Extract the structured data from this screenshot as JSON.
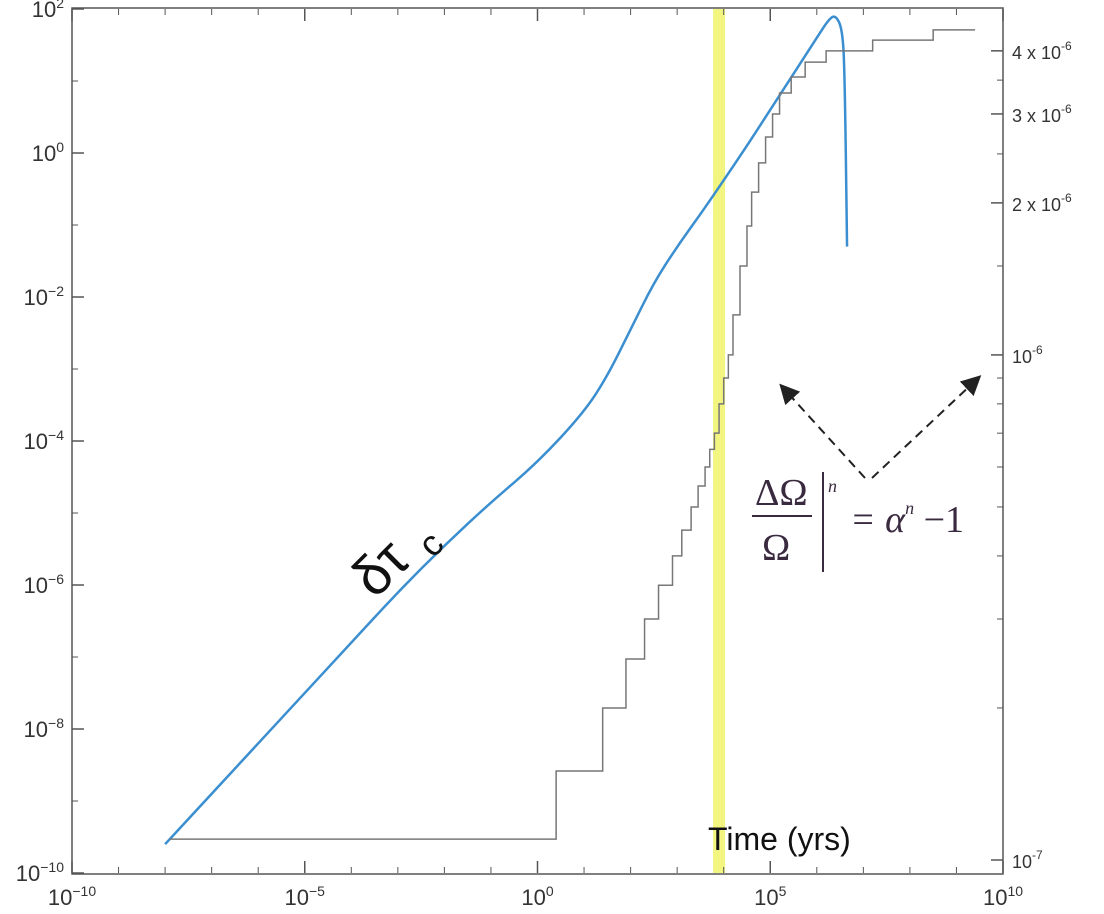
{
  "chart_data": {
    "type": "line",
    "xlabel": "Time (yrs)",
    "x_scale": "log",
    "y_scale": "log",
    "xlim": [
      1e-10,
      10000000000.0
    ],
    "ylim_left": [
      1e-10,
      100
    ],
    "ylim_right": [
      1e-07,
      4.5e-06
    ],
    "x_ticks": [
      {
        "value": -10,
        "base": "10",
        "exp": "−10"
      },
      {
        "value": -5,
        "base": "10",
        "exp": "−5"
      },
      {
        "value": 0,
        "base": "10",
        "exp": "0"
      },
      {
        "value": 5,
        "base": "10",
        "exp": "5"
      },
      {
        "value": 10,
        "base": "10",
        "exp": "10"
      }
    ],
    "y_ticks_left": [
      {
        "value": 2,
        "base": "10",
        "exp": "2"
      },
      {
        "value": 0,
        "base": "10",
        "exp": "0"
      },
      {
        "value": -2,
        "base": "10",
        "exp": "−2"
      },
      {
        "value": -4,
        "base": "10",
        "exp": "−4"
      },
      {
        "value": -6,
        "base": "10",
        "exp": "−6"
      },
      {
        "value": -8,
        "base": "10",
        "exp": "−8"
      },
      {
        "value": -10,
        "base": "10",
        "exp": "−10"
      }
    ],
    "y_ticks_right": [
      {
        "value": 4e-06,
        "base": "4 x 10",
        "exp": "-6"
      },
      {
        "value": 3e-06,
        "base": "3 x 10",
        "exp": "-6"
      },
      {
        "value": 2e-06,
        "base": "2 x 10",
        "exp": "-6"
      },
      {
        "value": 1e-06,
        "base": "10",
        "exp": "-6"
      },
      {
        "value": 1e-07,
        "base": "10",
        "exp": "-7"
      }
    ],
    "highlight": {
      "x_log": 3.9,
      "color": "#f0f56a"
    },
    "series": [
      {
        "name": "δτc",
        "color": "#3b8fd0",
        "axis": "left",
        "points": [
          [
            -8.0,
            -9.6
          ],
          [
            -7.0,
            -8.9
          ],
          [
            -6.0,
            -8.2
          ],
          [
            -5.0,
            -7.5
          ],
          [
            -4.0,
            -6.8
          ],
          [
            -3.0,
            -6.1
          ],
          [
            -2.0,
            -5.45
          ],
          [
            -1.0,
            -4.85
          ],
          [
            0.0,
            -4.3
          ],
          [
            1.0,
            -3.6
          ],
          [
            1.5,
            -3.1
          ],
          [
            2.0,
            -2.45
          ],
          [
            2.5,
            -1.8
          ],
          [
            3.0,
            -1.3
          ],
          [
            3.5,
            -0.85
          ],
          [
            4.0,
            -0.38
          ],
          [
            4.5,
            0.1
          ],
          [
            5.0,
            0.6
          ],
          [
            5.5,
            1.1
          ],
          [
            6.0,
            1.6
          ],
          [
            6.25,
            1.85
          ],
          [
            6.4,
            1.92
          ],
          [
            6.55,
            1.72
          ],
          [
            6.6,
            1.1
          ],
          [
            6.65,
            -1.3
          ]
        ]
      },
      {
        "name": "ΔΩ/Ω",
        "color": "#777777",
        "axis": "right",
        "steps": [
          [
            -7.9,
            1.1e-07
          ],
          [
            0.4,
            1.1e-07
          ],
          [
            0.4,
            1.5e-07
          ],
          [
            1.4,
            1.5e-07
          ],
          [
            1.4,
            2e-07
          ],
          [
            1.9,
            2e-07
          ],
          [
            1.9,
            2.5e-07
          ],
          [
            2.3,
            2.5e-07
          ],
          [
            2.3,
            3e-07
          ],
          [
            2.6,
            3e-07
          ],
          [
            2.6,
            3.5e-07
          ],
          [
            2.9,
            3.5e-07
          ],
          [
            2.9,
            4e-07
          ],
          [
            3.1,
            4e-07
          ],
          [
            3.1,
            4.5e-07
          ],
          [
            3.3,
            4.5e-07
          ],
          [
            3.3,
            5e-07
          ],
          [
            3.45,
            5e-07
          ],
          [
            3.45,
            5.5e-07
          ],
          [
            3.6,
            5.5e-07
          ],
          [
            3.6,
            6e-07
          ],
          [
            3.7,
            6e-07
          ],
          [
            3.7,
            6.5e-07
          ],
          [
            3.8,
            6.5e-07
          ],
          [
            3.8,
            7e-07
          ],
          [
            3.9,
            7e-07
          ],
          [
            3.9,
            8e-07
          ],
          [
            4.0,
            8e-07
          ],
          [
            4.0,
            9e-07
          ],
          [
            4.1,
            9e-07
          ],
          [
            4.1,
            1e-06
          ],
          [
            4.2,
            1e-06
          ],
          [
            4.2,
            1.2e-06
          ],
          [
            4.35,
            1.2e-06
          ],
          [
            4.35,
            1.5e-06
          ],
          [
            4.5,
            1.5e-06
          ],
          [
            4.5,
            1.8e-06
          ],
          [
            4.6,
            1.8e-06
          ],
          [
            4.6,
            2.1e-06
          ],
          [
            4.75,
            2.1e-06
          ],
          [
            4.75,
            2.4e-06
          ],
          [
            4.9,
            2.4e-06
          ],
          [
            4.9,
            2.7e-06
          ],
          [
            5.05,
            2.7e-06
          ],
          [
            5.05,
            3e-06
          ],
          [
            5.2,
            3e-06
          ],
          [
            5.2,
            3.3e-06
          ],
          [
            5.45,
            3.3e-06
          ],
          [
            5.45,
            3.55e-06
          ],
          [
            5.75,
            3.55e-06
          ],
          [
            5.75,
            3.8e-06
          ],
          [
            6.2,
            3.8e-06
          ],
          [
            6.2,
            4e-06
          ],
          [
            7.2,
            4e-06
          ],
          [
            7.2,
            4.2e-06
          ],
          [
            8.5,
            4.2e-06
          ],
          [
            8.5,
            4.4e-06
          ],
          [
            9.4,
            4.4e-06
          ]
        ]
      }
    ],
    "annotations": {
      "tau_label": "δτ",
      "tau_sub": "c",
      "eq_num": "ΔΩ",
      "eq_den": "Ω",
      "eq_sup": "n",
      "eq_rhs": "= α",
      "eq_rhs_sup": "n",
      "eq_rhs_tail": " −1"
    }
  }
}
